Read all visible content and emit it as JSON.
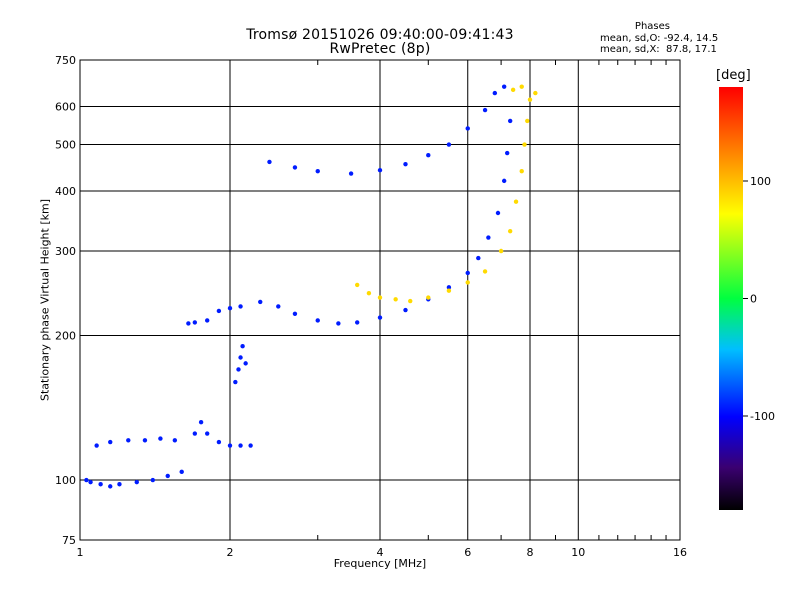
{
  "chart_data": {
    "type": "scatter",
    "title": "Tromsø 20151026 09:40:00-09:41:43",
    "subtitle": "RwPretec (8p)",
    "xlabel": "Frequency [MHz]",
    "ylabel": "Stationary phase Virtual Height [km]",
    "x_scale": "log",
    "y_scale": "log",
    "xlim": [
      1,
      16
    ],
    "ylim": [
      75,
      750
    ],
    "x_ticks": [
      "1",
      "2",
      "4",
      "6",
      "8",
      "10",
      "16"
    ],
    "x_tick_values": [
      1,
      2,
      4,
      6,
      8,
      10,
      16
    ],
    "y_ticks": [
      "75",
      "100",
      "200",
      "300",
      "400",
      "500",
      "600",
      "750"
    ],
    "y_tick_values": [
      75,
      100,
      200,
      300,
      400,
      500,
      600,
      750
    ],
    "grid": true,
    "phase_legend": {
      "heading": "Phases",
      "line1": "mean, sd,O: -92.4, 14.5",
      "line2": "mean, sd,X:  87.8, 17.1"
    },
    "colorbar": {
      "label": "[deg]",
      "ticks": [
        "100",
        "0",
        "-100"
      ],
      "tick_values": [
        100,
        0,
        -100
      ],
      "range": [
        -180,
        180
      ]
    },
    "series": [
      {
        "name": "O",
        "phase": -92.4,
        "points": [
          [
            1.03,
            100
          ],
          [
            1.05,
            99
          ],
          [
            1.1,
            98
          ],
          [
            1.15,
            97
          ],
          [
            1.2,
            98
          ],
          [
            1.3,
            99
          ],
          [
            1.4,
            100
          ],
          [
            1.5,
            102
          ],
          [
            1.6,
            104
          ],
          [
            1.08,
            118
          ],
          [
            1.15,
            120
          ],
          [
            1.25,
            121
          ],
          [
            1.35,
            121
          ],
          [
            1.45,
            122
          ],
          [
            1.55,
            121
          ],
          [
            1.7,
            125
          ],
          [
            1.75,
            132
          ],
          [
            1.8,
            125
          ],
          [
            1.9,
            120
          ],
          [
            2.0,
            118
          ],
          [
            2.1,
            118
          ],
          [
            2.2,
            118
          ],
          [
            1.65,
            212
          ],
          [
            1.7,
            213
          ],
          [
            1.8,
            215
          ],
          [
            1.9,
            225
          ],
          [
            2.0,
            228
          ],
          [
            2.1,
            230
          ],
          [
            2.05,
            160
          ],
          [
            2.08,
            170
          ],
          [
            2.1,
            180
          ],
          [
            2.12,
            190
          ],
          [
            2.15,
            175
          ],
          [
            2.3,
            235
          ],
          [
            2.5,
            230
          ],
          [
            2.7,
            222
          ],
          [
            3.0,
            215
          ],
          [
            3.3,
            212
          ],
          [
            3.6,
            213
          ],
          [
            4.0,
            218
          ],
          [
            4.5,
            226
          ],
          [
            5.0,
            238
          ],
          [
            5.5,
            252
          ],
          [
            6.0,
            270
          ],
          [
            6.3,
            290
          ],
          [
            6.6,
            320
          ],
          [
            6.9,
            360
          ],
          [
            7.1,
            420
          ],
          [
            7.2,
            480
          ],
          [
            7.3,
            560
          ],
          [
            2.4,
            460
          ],
          [
            2.7,
            448
          ],
          [
            3.0,
            440
          ],
          [
            3.5,
            435
          ],
          [
            4.0,
            442
          ],
          [
            4.5,
            455
          ],
          [
            5.0,
            475
          ],
          [
            5.5,
            500
          ],
          [
            6.0,
            540
          ],
          [
            6.5,
            590
          ],
          [
            6.8,
            640
          ],
          [
            7.1,
            660
          ]
        ]
      },
      {
        "name": "X",
        "phase": 87.8,
        "points": [
          [
            3.6,
            255
          ],
          [
            3.8,
            245
          ],
          [
            4.0,
            240
          ],
          [
            4.3,
            238
          ],
          [
            4.6,
            236
          ],
          [
            5.0,
            240
          ],
          [
            5.5,
            248
          ],
          [
            6.0,
            258
          ],
          [
            6.5,
            272
          ],
          [
            7.0,
            300
          ],
          [
            7.3,
            330
          ],
          [
            7.5,
            380
          ],
          [
            7.7,
            440
          ],
          [
            7.8,
            500
          ],
          [
            7.9,
            560
          ],
          [
            8.0,
            620
          ],
          [
            7.4,
            650
          ],
          [
            7.7,
            660
          ],
          [
            8.2,
            640
          ]
        ]
      }
    ]
  }
}
